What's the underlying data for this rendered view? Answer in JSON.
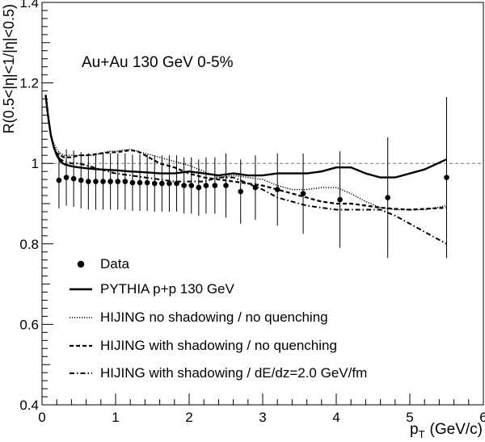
{
  "chart_data": {
    "type": "scatter",
    "annotation": "Au+Au 130 GeV   0-5%",
    "xlabel": "p",
    "xlabel_sub": "T",
    "xlabel_unit": "(GeV/c)",
    "ylabel": "R(0.5<|η|<1/|η|<0.5)",
    "xlim": [
      0,
      6
    ],
    "ylim": [
      0.4,
      1.4
    ],
    "x_ticks": [
      0,
      1,
      2,
      3,
      4,
      5,
      6
    ],
    "y_ticks": [
      0.4,
      0.6,
      0.8,
      1.0,
      1.2,
      1.4
    ],
    "x_tick_labels": [
      "0",
      "1",
      "2",
      "3",
      "4",
      "5",
      "6"
    ],
    "y_tick_labels": [
      "0.4",
      "0.6",
      "0.8",
      "1",
      "1.2",
      "1.4"
    ],
    "reference_line": 1.0,
    "legend_position": "bottom-left",
    "data": {
      "name": "Data",
      "points": [
        {
          "x": 0.23,
          "y": 0.958,
          "err": 0.07
        },
        {
          "x": 0.33,
          "y": 0.965,
          "err": 0.07
        },
        {
          "x": 0.43,
          "y": 0.962,
          "err": 0.07
        },
        {
          "x": 0.53,
          "y": 0.958,
          "err": 0.07
        },
        {
          "x": 0.63,
          "y": 0.955,
          "err": 0.07
        },
        {
          "x": 0.73,
          "y": 0.955,
          "err": 0.07
        },
        {
          "x": 0.83,
          "y": 0.955,
          "err": 0.07
        },
        {
          "x": 0.93,
          "y": 0.955,
          "err": 0.07
        },
        {
          "x": 1.03,
          "y": 0.955,
          "err": 0.07
        },
        {
          "x": 1.13,
          "y": 0.955,
          "err": 0.07
        },
        {
          "x": 1.23,
          "y": 0.952,
          "err": 0.07
        },
        {
          "x": 1.33,
          "y": 0.952,
          "err": 0.07
        },
        {
          "x": 1.43,
          "y": 0.952,
          "err": 0.07
        },
        {
          "x": 1.53,
          "y": 0.95,
          "err": 0.07
        },
        {
          "x": 1.63,
          "y": 0.95,
          "err": 0.07
        },
        {
          "x": 1.73,
          "y": 0.95,
          "err": 0.07
        },
        {
          "x": 1.83,
          "y": 0.95,
          "err": 0.07
        },
        {
          "x": 1.93,
          "y": 0.945,
          "err": 0.07
        },
        {
          "x": 2.03,
          "y": 0.945,
          "err": 0.07
        },
        {
          "x": 2.13,
          "y": 0.94,
          "err": 0.07
        },
        {
          "x": 2.23,
          "y": 0.945,
          "err": 0.07
        },
        {
          "x": 2.35,
          "y": 0.945,
          "err": 0.07
        },
        {
          "x": 2.5,
          "y": 0.945,
          "err": 0.08
        },
        {
          "x": 2.7,
          "y": 0.93,
          "err": 0.08
        },
        {
          "x": 2.9,
          "y": 0.94,
          "err": 0.08
        },
        {
          "x": 3.2,
          "y": 0.935,
          "err": 0.09
        },
        {
          "x": 3.55,
          "y": 0.925,
          "err": 0.1
        },
        {
          "x": 4.05,
          "y": 0.91,
          "err": 0.12
        },
        {
          "x": 4.7,
          "y": 0.915,
          "err": 0.15
        },
        {
          "x": 5.5,
          "y": 0.965,
          "err": 0.2
        }
      ]
    },
    "series": [
      {
        "name": "PYTHIA  p+p 130 GeV",
        "style": "solid",
        "x": [
          0.05,
          0.08,
          0.12,
          0.16,
          0.2,
          0.25,
          0.3,
          0.4,
          0.5,
          0.6,
          0.7,
          0.8,
          0.9,
          1.0,
          1.2,
          1.4,
          1.6,
          1.8,
          2.0,
          2.2,
          2.4,
          2.6,
          2.8,
          3.0,
          3.2,
          3.4,
          3.6,
          3.8,
          4.0,
          4.2,
          4.4,
          4.6,
          4.8,
          5.0,
          5.2,
          5.5
        ],
        "y": [
          1.17,
          1.12,
          1.07,
          1.04,
          1.02,
          1.005,
          0.998,
          0.993,
          0.99,
          0.988,
          0.986,
          0.985,
          0.984,
          0.983,
          0.98,
          0.978,
          0.975,
          0.975,
          0.98,
          0.975,
          0.97,
          0.975,
          0.97,
          0.97,
          0.975,
          0.975,
          0.975,
          0.98,
          0.99,
          0.99,
          0.975,
          0.965,
          0.965,
          0.975,
          0.985,
          1.01
        ]
      },
      {
        "name": "HIJING  no shadowing / no quenching",
        "style": "dotted",
        "x": [
          0.05,
          0.08,
          0.12,
          0.16,
          0.2,
          0.25,
          0.3,
          0.4,
          0.5,
          0.6,
          0.7,
          0.8,
          0.9,
          1.0,
          1.1,
          1.2,
          1.3,
          1.4,
          1.5,
          1.6,
          1.8,
          2.0,
          2.2,
          2.4,
          2.6,
          2.8,
          3.0,
          3.2,
          3.4,
          3.6,
          3.8,
          4.0,
          4.2,
          4.4,
          4.6,
          4.8,
          5.0,
          5.2,
          5.5
        ],
        "y": [
          1.17,
          1.12,
          1.07,
          1.05,
          1.035,
          1.025,
          1.02,
          1.02,
          1.02,
          1.02,
          1.02,
          1.025,
          1.03,
          1.03,
          1.033,
          1.035,
          1.03,
          1.025,
          1.02,
          1.015,
          1.005,
          0.995,
          0.98,
          0.965,
          0.97,
          0.965,
          0.96,
          0.945,
          0.935,
          0.935,
          0.94,
          0.94,
          0.925,
          0.905,
          0.89,
          0.885,
          0.885,
          0.885,
          0.895
        ]
      },
      {
        "name": "HIJING  with shadowing / no quenching",
        "style": "dashed",
        "x": [
          0.05,
          0.08,
          0.12,
          0.16,
          0.2,
          0.25,
          0.3,
          0.4,
          0.5,
          0.6,
          0.7,
          0.8,
          0.9,
          1.0,
          1.1,
          1.2,
          1.3,
          1.4,
          1.5,
          1.6,
          1.8,
          2.0,
          2.2,
          2.4,
          2.6,
          2.8,
          3.0,
          3.2,
          3.4,
          3.6,
          3.8,
          4.0,
          4.2,
          4.4,
          4.6,
          4.8,
          5.0,
          5.2,
          5.5
        ],
        "y": [
          1.17,
          1.12,
          1.07,
          1.04,
          1.025,
          1.02,
          1.015,
          1.015,
          1.02,
          1.02,
          1.022,
          1.025,
          1.027,
          1.028,
          1.03,
          1.033,
          1.03,
          1.02,
          1.01,
          1.0,
          0.99,
          0.975,
          0.965,
          0.96,
          0.955,
          0.95,
          0.945,
          0.935,
          0.925,
          0.915,
          0.905,
          0.9,
          0.9,
          0.895,
          0.89,
          0.887,
          0.885,
          0.887,
          0.89
        ]
      },
      {
        "name": "HIJING  with shadowing / dE/dz=2.0 GeV/fm",
        "style": "dashdot",
        "x": [
          0.05,
          0.08,
          0.12,
          0.16,
          0.2,
          0.25,
          0.3,
          0.4,
          0.5,
          0.6,
          0.7,
          0.8,
          0.9,
          1.0,
          1.2,
          1.4,
          1.6,
          1.8,
          2.0,
          2.2,
          2.4,
          2.6,
          2.8,
          3.0,
          3.2,
          3.4,
          3.6,
          3.8,
          4.0,
          4.2,
          4.4,
          4.6,
          4.8,
          5.0,
          5.2,
          5.5
        ],
        "y": [
          1.17,
          1.12,
          1.07,
          1.04,
          1.02,
          1.01,
          1.005,
          1.0,
          1.0,
          0.995,
          0.99,
          0.985,
          0.98,
          0.975,
          0.97,
          0.965,
          0.96,
          0.955,
          0.955,
          0.955,
          0.965,
          0.965,
          0.95,
          0.935,
          0.915,
          0.905,
          0.895,
          0.89,
          0.885,
          0.885,
          0.885,
          0.885,
          0.87,
          0.85,
          0.83,
          0.8
        ]
      }
    ]
  }
}
